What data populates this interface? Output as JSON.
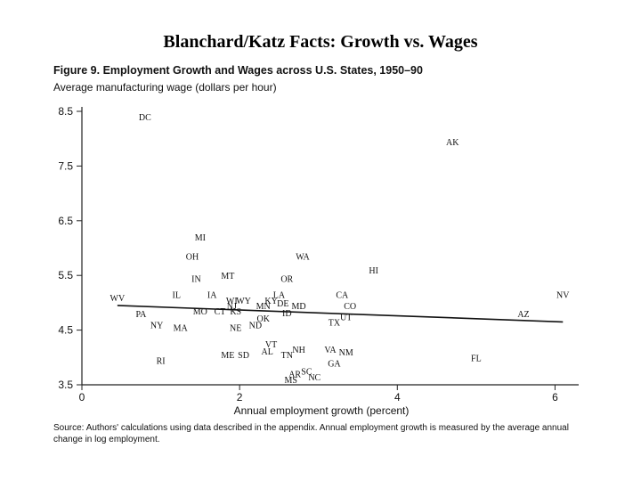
{
  "slide": {
    "title": "Blanchard/Katz Facts:  Growth vs. Wages"
  },
  "figure": {
    "title": "Figure 9.  Employment Growth and Wages across U.S. States, 1950–90",
    "source": "Source: Authors' calculations using data described in the appendix. Annual employment growth is measured by the average annual change in log employment."
  },
  "chart_data": {
    "type": "scatter",
    "title": "",
    "ylabel": "Average manufacturing wage (dollars per hour)",
    "xlabel": "Annual employment growth (percent)",
    "xlim": [
      0,
      6.3
    ],
    "ylim": [
      3.5,
      8.5
    ],
    "x_ticks": [
      "0",
      "2",
      "4",
      "6"
    ],
    "y_ticks": [
      "3.5",
      "4.5",
      "5.5",
      "6.5",
      "7.5",
      "8.5"
    ],
    "x_tick_values": [
      0,
      2,
      4,
      6
    ],
    "y_tick_values": [
      3.5,
      4.5,
      5.5,
      6.5,
      7.5,
      8.5
    ],
    "trend_line": {
      "x": [
        0.45,
        6.1
      ],
      "y": [
        4.95,
        4.65
      ]
    },
    "points": [
      {
        "label": "DC",
        "x": 0.8,
        "y": 8.4
      },
      {
        "label": "AK",
        "x": 4.7,
        "y": 7.95
      },
      {
        "label": "MI",
        "x": 1.5,
        "y": 6.2
      },
      {
        "label": "OH",
        "x": 1.4,
        "y": 5.85
      },
      {
        "label": "WA",
        "x": 2.8,
        "y": 5.85
      },
      {
        "label": "HI",
        "x": 3.7,
        "y": 5.6
      },
      {
        "label": "IN",
        "x": 1.45,
        "y": 5.45
      },
      {
        "label": "MT",
        "x": 1.85,
        "y": 5.5
      },
      {
        "label": "OR",
        "x": 2.6,
        "y": 5.45
      },
      {
        "label": "IL",
        "x": 1.2,
        "y": 5.15
      },
      {
        "label": "IA",
        "x": 1.65,
        "y": 5.15
      },
      {
        "label": "LA",
        "x": 2.5,
        "y": 5.15
      },
      {
        "label": "CA",
        "x": 3.3,
        "y": 5.15
      },
      {
        "label": "WV",
        "x": 0.45,
        "y": 5.1
      },
      {
        "label": "NV",
        "x": 6.1,
        "y": 5.15
      },
      {
        "label": "WI",
        "x": 1.9,
        "y": 5.05
      },
      {
        "label": "WY",
        "x": 2.05,
        "y": 5.05
      },
      {
        "label": "KY",
        "x": 2.4,
        "y": 5.05
      },
      {
        "label": "NJ",
        "x": 1.9,
        "y": 4.95
      },
      {
        "label": "MN",
        "x": 2.3,
        "y": 4.95
      },
      {
        "label": "DE",
        "x": 2.55,
        "y": 5.0
      },
      {
        "label": "MD",
        "x": 2.75,
        "y": 4.95
      },
      {
        "label": "CO",
        "x": 3.4,
        "y": 4.95
      },
      {
        "label": "MO",
        "x": 1.5,
        "y": 4.85
      },
      {
        "label": "CT",
        "x": 1.75,
        "y": 4.85
      },
      {
        "label": "KS",
        "x": 1.95,
        "y": 4.85
      },
      {
        "label": "ID",
        "x": 2.6,
        "y": 4.82
      },
      {
        "label": "PA",
        "x": 0.75,
        "y": 4.8
      },
      {
        "label": "AZ",
        "x": 5.6,
        "y": 4.8
      },
      {
        "label": "OK",
        "x": 2.3,
        "y": 4.72
      },
      {
        "label": "UT",
        "x": 3.35,
        "y": 4.75
      },
      {
        "label": "TX",
        "x": 3.2,
        "y": 4.65
      },
      {
        "label": "NY",
        "x": 0.95,
        "y": 4.6
      },
      {
        "label": "MA",
        "x": 1.25,
        "y": 4.55
      },
      {
        "label": "NE",
        "x": 1.95,
        "y": 4.55
      },
      {
        "label": "ND",
        "x": 2.2,
        "y": 4.6
      },
      {
        "label": "VT",
        "x": 2.4,
        "y": 4.25
      },
      {
        "label": "AL",
        "x": 2.35,
        "y": 4.12
      },
      {
        "label": "NH",
        "x": 2.75,
        "y": 4.15
      },
      {
        "label": "VA",
        "x": 3.15,
        "y": 4.15
      },
      {
        "label": "NM",
        "x": 3.35,
        "y": 4.1
      },
      {
        "label": "ME",
        "x": 1.85,
        "y": 4.05
      },
      {
        "label": "SD",
        "x": 2.05,
        "y": 4.05
      },
      {
        "label": "TN",
        "x": 2.6,
        "y": 4.05
      },
      {
        "label": "RI",
        "x": 1.0,
        "y": 3.95
      },
      {
        "label": "GA",
        "x": 3.2,
        "y": 3.9
      },
      {
        "label": "FL",
        "x": 5.0,
        "y": 4.0
      },
      {
        "label": "SC",
        "x": 2.85,
        "y": 3.75
      },
      {
        "label": "AR",
        "x": 2.7,
        "y": 3.7
      },
      {
        "label": "NC",
        "x": 2.95,
        "y": 3.65
      },
      {
        "label": "MS",
        "x": 2.65,
        "y": 3.6
      }
    ]
  }
}
